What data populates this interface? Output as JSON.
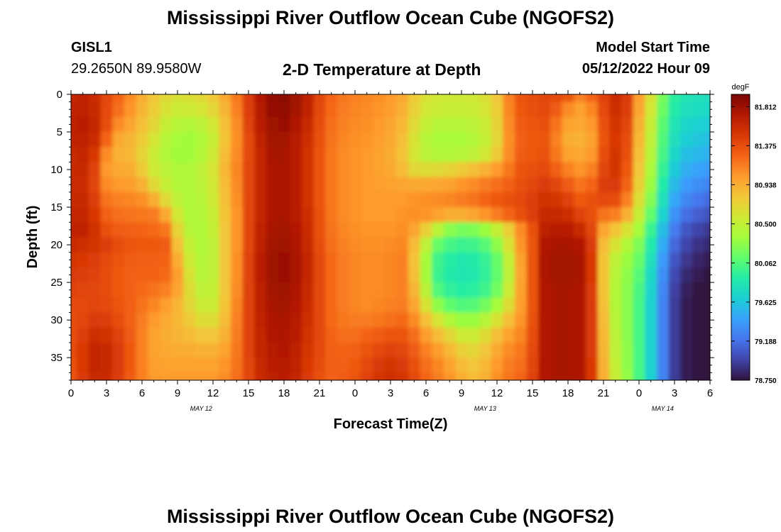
{
  "header": {
    "title": "Mississippi River Outflow Ocean Cube (NGOFS2)",
    "station_id": "GISL1",
    "station_coords": "29.2650N  89.9580W",
    "plot_title": "2-D Temperature at Depth",
    "model_start_label": "Model Start Time",
    "model_start_value": "05/12/2022 Hour 09",
    "footer_title": "Mississippi River Outflow Ocean Cube (NGOFS2)"
  },
  "chart_data": {
    "type": "heatmap",
    "title": "2-D Temperature at Depth",
    "xlabel": "Forecast Time(Z)",
    "ylabel": "Depth (ft)",
    "x_tick_labels": [
      "0",
      "3",
      "6",
      "9",
      "12",
      "15",
      "18",
      "21",
      "0",
      "3",
      "6",
      "9",
      "12",
      "15",
      "18",
      "21",
      "0",
      "3",
      "6"
    ],
    "x_day_labels": [
      {
        "label": "MAY 12",
        "at_hour": 11
      },
      {
        "label": "MAY 13",
        "at_hour": 35
      },
      {
        "label": "MAY 14",
        "at_hour": 50
      }
    ],
    "xlim_hours": [
      0,
      54
    ],
    "y_ticks": [
      0,
      5,
      10,
      15,
      20,
      25,
      30,
      35
    ],
    "ylim": [
      0,
      38
    ],
    "y_inverted": true,
    "colorbar": {
      "unit": "degF",
      "min": 78.75,
      "max": 81.95,
      "tick_labels": [
        "81.812",
        "81.375",
        "80.938",
        "80.500",
        "80.062",
        "79.625",
        "79.188",
        "78.750"
      ],
      "tick_values": [
        81.812,
        81.375,
        80.938,
        80.5,
        80.062,
        79.625,
        79.188,
        78.75
      ]
    },
    "colormap": [
      "#30123b",
      "#4145ab",
      "#4675ed",
      "#39a2fc",
      "#1bcfd4",
      "#24eca6",
      "#61fc6c",
      "#a4fc3b",
      "#d1e834",
      "#f3c63a",
      "#fe9b2d",
      "#f36315",
      "#d93806",
      "#b11901",
      "#7a0403"
    ],
    "depths_ft": [
      0,
      2,
      4,
      6,
      8,
      10,
      12,
      14,
      16,
      18,
      20,
      22,
      24,
      26,
      28,
      30,
      32,
      34,
      36,
      38
    ],
    "times_hours": [
      0,
      1,
      2,
      3,
      4,
      5,
      6,
      7,
      8,
      9,
      10,
      11,
      12,
      13,
      14,
      15,
      16,
      17,
      18,
      19,
      20,
      21,
      22,
      23,
      24,
      25,
      26,
      27,
      28,
      29,
      30,
      31,
      32,
      33,
      34,
      35,
      36,
      37,
      38,
      39,
      40,
      41,
      42,
      43,
      44,
      45,
      46,
      47,
      48,
      49,
      50,
      51,
      52,
      53,
      54
    ],
    "temperature_degF": [
      [
        81.62,
        81.64,
        81.58,
        81.42,
        81.26,
        81.1,
        80.94,
        80.8,
        80.68,
        80.62,
        80.64,
        80.68,
        80.78,
        80.96,
        81.18,
        81.48,
        81.72,
        81.86,
        81.88,
        81.8,
        81.66,
        81.42,
        81.26,
        81.18,
        81.14,
        81.12,
        81.08,
        81.04,
        80.96,
        80.78,
        80.62,
        80.58,
        80.56,
        80.56,
        80.58,
        80.64,
        80.8,
        81.14,
        81.34,
        81.38,
        81.42,
        81.4,
        81.34,
        81.14,
        81.26,
        81.44,
        81.58,
        81.48,
        81.02,
        80.62,
        80.2,
        79.92,
        79.82,
        79.8,
        79.78
      ],
      [
        81.64,
        81.66,
        81.6,
        81.4,
        81.22,
        81.06,
        80.9,
        80.76,
        80.62,
        80.54,
        80.56,
        80.6,
        80.7,
        80.9,
        81.14,
        81.46,
        81.7,
        81.84,
        81.86,
        81.78,
        81.64,
        81.4,
        81.24,
        81.16,
        81.12,
        81.1,
        81.06,
        81.02,
        80.92,
        80.74,
        80.58,
        80.54,
        80.52,
        80.52,
        80.54,
        80.6,
        80.76,
        81.12,
        81.32,
        81.36,
        81.4,
        81.3,
        81.1,
        81.0,
        81.12,
        81.4,
        81.56,
        81.46,
        80.98,
        80.58,
        80.16,
        79.88,
        79.78,
        79.76,
        79.74
      ],
      [
        81.66,
        81.68,
        81.62,
        81.38,
        81.1,
        80.98,
        80.84,
        80.7,
        80.52,
        80.44,
        80.42,
        80.46,
        80.58,
        80.84,
        81.1,
        81.44,
        81.68,
        81.8,
        81.82,
        81.74,
        81.6,
        81.38,
        81.22,
        81.14,
        81.1,
        81.08,
        81.04,
        80.98,
        80.88,
        80.68,
        80.5,
        80.44,
        80.44,
        80.44,
        80.46,
        80.54,
        80.72,
        81.1,
        81.3,
        81.34,
        81.36,
        81.2,
        81.0,
        80.96,
        81.04,
        81.36,
        81.52,
        81.42,
        80.92,
        80.52,
        80.1,
        79.82,
        79.72,
        79.68,
        79.66
      ],
      [
        81.64,
        81.66,
        81.58,
        81.26,
        80.96,
        80.9,
        80.78,
        80.6,
        80.44,
        80.36,
        80.34,
        80.4,
        80.52,
        80.82,
        81.08,
        81.4,
        81.64,
        81.78,
        81.78,
        81.7,
        81.56,
        81.36,
        81.2,
        81.12,
        81.08,
        81.06,
        81.02,
        80.96,
        80.84,
        80.62,
        80.44,
        80.38,
        80.38,
        80.38,
        80.42,
        80.5,
        80.7,
        81.08,
        81.28,
        81.32,
        81.34,
        81.14,
        80.94,
        80.92,
        81.0,
        81.34,
        81.5,
        81.38,
        80.88,
        80.48,
        80.06,
        79.78,
        79.66,
        79.62,
        79.58
      ],
      [
        81.6,
        81.62,
        81.5,
        81.1,
        80.92,
        80.88,
        80.72,
        80.54,
        80.42,
        80.34,
        80.34,
        80.42,
        80.56,
        80.86,
        81.1,
        81.4,
        81.62,
        81.76,
        81.76,
        81.68,
        81.54,
        81.34,
        81.18,
        81.1,
        81.06,
        81.04,
        81.0,
        80.94,
        80.82,
        80.6,
        80.46,
        80.42,
        80.42,
        80.44,
        80.48,
        80.58,
        80.78,
        81.1,
        81.3,
        81.32,
        81.36,
        81.18,
        81.0,
        80.96,
        81.04,
        81.38,
        81.52,
        81.36,
        80.84,
        80.44,
        80.02,
        79.72,
        79.58,
        79.54,
        79.5
      ],
      [
        81.58,
        81.6,
        81.44,
        81.04,
        80.96,
        80.94,
        80.78,
        80.56,
        80.46,
        80.4,
        80.4,
        80.48,
        80.6,
        80.9,
        81.12,
        81.42,
        81.62,
        81.74,
        81.76,
        81.68,
        81.54,
        81.34,
        81.18,
        81.1,
        81.06,
        81.04,
        81.0,
        80.96,
        80.86,
        80.7,
        80.66,
        80.68,
        80.72,
        80.78,
        80.84,
        80.92,
        81.04,
        81.18,
        81.34,
        81.36,
        81.4,
        81.28,
        81.14,
        81.06,
        81.14,
        81.42,
        81.52,
        81.32,
        80.8,
        80.38,
        79.96,
        79.64,
        79.5,
        79.44,
        79.4
      ],
      [
        81.58,
        81.58,
        81.42,
        81.1,
        81.04,
        81.02,
        80.92,
        80.68,
        80.52,
        80.42,
        80.4,
        80.46,
        80.58,
        80.86,
        81.1,
        81.42,
        81.62,
        81.74,
        81.76,
        81.68,
        81.54,
        81.34,
        81.18,
        81.1,
        81.06,
        81.04,
        81.02,
        81.0,
        80.98,
        80.96,
        80.96,
        80.98,
        81.0,
        81.06,
        81.1,
        81.16,
        81.22,
        81.28,
        81.36,
        81.42,
        81.48,
        81.42,
        81.3,
        81.2,
        81.26,
        81.46,
        81.48,
        81.26,
        80.74,
        80.32,
        79.88,
        79.56,
        79.4,
        79.34,
        79.28
      ],
      [
        81.6,
        81.6,
        81.46,
        81.2,
        81.14,
        81.12,
        81.08,
        80.94,
        80.68,
        80.48,
        80.4,
        80.44,
        80.56,
        80.84,
        81.08,
        81.42,
        81.62,
        81.74,
        81.76,
        81.68,
        81.54,
        81.34,
        81.18,
        81.1,
        81.06,
        81.04,
        81.04,
        81.04,
        81.04,
        81.06,
        81.08,
        81.1,
        81.12,
        81.16,
        81.2,
        81.26,
        81.32,
        81.36,
        81.4,
        81.46,
        81.54,
        81.52,
        81.44,
        81.32,
        81.36,
        81.4,
        81.38,
        81.14,
        80.64,
        80.24,
        79.8,
        79.46,
        79.3,
        79.22,
        79.16
      ],
      [
        81.62,
        81.62,
        81.5,
        81.28,
        81.22,
        81.2,
        81.18,
        81.16,
        80.96,
        80.58,
        80.4,
        80.42,
        80.52,
        80.82,
        81.06,
        81.42,
        81.62,
        81.74,
        81.76,
        81.7,
        81.56,
        81.36,
        81.18,
        81.1,
        81.06,
        81.04,
        81.04,
        81.04,
        81.06,
        81.08,
        81.06,
        81.0,
        80.94,
        80.94,
        80.98,
        81.06,
        81.16,
        81.26,
        81.36,
        81.46,
        81.6,
        81.6,
        81.56,
        81.44,
        81.36,
        81.2,
        81.14,
        80.92,
        80.52,
        80.12,
        79.7,
        79.36,
        79.18,
        79.1,
        79.04
      ],
      [
        81.64,
        81.64,
        81.54,
        81.36,
        81.3,
        81.28,
        81.26,
        81.24,
        81.18,
        80.72,
        80.44,
        80.4,
        80.5,
        80.8,
        81.06,
        81.42,
        81.64,
        81.76,
        81.78,
        81.72,
        81.58,
        81.36,
        81.2,
        81.12,
        81.08,
        81.06,
        81.06,
        81.06,
        81.08,
        80.98,
        80.74,
        80.46,
        80.26,
        80.2,
        80.22,
        80.32,
        80.5,
        80.76,
        81.1,
        81.36,
        81.66,
        81.7,
        81.68,
        81.6,
        81.42,
        80.98,
        80.82,
        80.62,
        80.36,
        79.98,
        79.58,
        79.24,
        79.06,
        78.98,
        78.92
      ],
      [
        81.58,
        81.56,
        81.52,
        81.46,
        81.38,
        81.34,
        81.32,
        81.32,
        81.3,
        80.84,
        80.5,
        80.4,
        80.48,
        80.8,
        81.06,
        81.42,
        81.66,
        81.78,
        81.8,
        81.74,
        81.6,
        81.38,
        81.22,
        81.14,
        81.1,
        81.08,
        81.08,
        81.1,
        81.12,
        80.86,
        80.48,
        80.14,
        80.02,
        79.98,
        80.0,
        80.08,
        80.28,
        80.62,
        81.06,
        81.34,
        81.72,
        81.76,
        81.76,
        81.72,
        81.48,
        80.86,
        80.62,
        80.42,
        80.22,
        79.88,
        79.48,
        79.14,
        78.98,
        78.9,
        78.86
      ],
      [
        81.52,
        81.5,
        81.46,
        81.4,
        81.34,
        81.3,
        81.28,
        81.28,
        81.26,
        80.94,
        80.56,
        80.42,
        80.48,
        80.8,
        81.08,
        81.44,
        81.68,
        81.8,
        81.82,
        81.76,
        81.62,
        81.4,
        81.24,
        81.16,
        81.12,
        81.1,
        81.1,
        81.12,
        81.14,
        80.82,
        80.36,
        80.0,
        79.9,
        79.86,
        79.88,
        79.96,
        80.14,
        80.5,
        81.0,
        81.34,
        81.74,
        81.78,
        81.78,
        81.76,
        81.5,
        80.82,
        80.48,
        80.32,
        80.14,
        79.8,
        79.4,
        79.06,
        78.92,
        78.84,
        78.8
      ],
      [
        81.48,
        81.46,
        81.44,
        81.38,
        81.32,
        81.28,
        81.26,
        81.26,
        81.24,
        81.02,
        80.62,
        80.44,
        80.48,
        80.8,
        81.08,
        81.44,
        81.68,
        81.8,
        81.82,
        81.76,
        81.62,
        81.4,
        81.24,
        81.16,
        81.12,
        81.1,
        81.1,
        81.12,
        81.14,
        80.84,
        80.36,
        79.98,
        79.88,
        79.84,
        79.86,
        79.94,
        80.12,
        80.48,
        80.98,
        81.34,
        81.74,
        81.78,
        81.78,
        81.76,
        81.5,
        80.82,
        80.44,
        80.28,
        80.08,
        79.74,
        79.34,
        79.0,
        78.86,
        78.8,
        78.76
      ],
      [
        81.44,
        81.42,
        81.42,
        81.38,
        81.32,
        81.28,
        81.24,
        81.2,
        81.14,
        80.98,
        80.66,
        80.48,
        80.5,
        80.8,
        81.1,
        81.44,
        81.66,
        81.78,
        81.8,
        81.74,
        81.6,
        81.4,
        81.24,
        81.16,
        81.12,
        81.1,
        81.1,
        81.12,
        81.14,
        80.9,
        80.46,
        80.06,
        79.94,
        79.9,
        79.92,
        80.0,
        80.18,
        80.54,
        81.0,
        81.34,
        81.72,
        81.76,
        81.76,
        81.74,
        81.48,
        80.82,
        80.42,
        80.26,
        80.04,
        79.7,
        79.3,
        78.96,
        78.82,
        78.76,
        78.74
      ],
      [
        81.4,
        81.4,
        81.42,
        81.4,
        81.34,
        81.28,
        81.2,
        81.12,
        81.02,
        80.9,
        80.7,
        80.54,
        80.54,
        80.82,
        81.12,
        81.44,
        81.66,
        81.76,
        81.78,
        81.72,
        81.58,
        81.4,
        81.24,
        81.16,
        81.12,
        81.1,
        81.12,
        81.14,
        81.16,
        80.98,
        80.62,
        80.28,
        80.12,
        80.06,
        80.08,
        80.18,
        80.36,
        80.66,
        81.02,
        81.34,
        81.72,
        81.76,
        81.76,
        81.74,
        81.48,
        80.84,
        80.42,
        80.26,
        80.02,
        79.68,
        79.28,
        78.94,
        78.8,
        78.76,
        78.74
      ],
      [
        81.38,
        81.42,
        81.48,
        81.46,
        81.38,
        81.28,
        81.16,
        81.04,
        80.96,
        80.88,
        80.78,
        80.66,
        80.66,
        80.86,
        81.14,
        81.44,
        81.64,
        81.74,
        81.76,
        81.7,
        81.56,
        81.4,
        81.24,
        81.18,
        81.16,
        81.16,
        81.18,
        81.22,
        81.24,
        81.1,
        80.84,
        80.6,
        80.42,
        80.32,
        80.32,
        80.44,
        80.62,
        80.84,
        81.06,
        81.36,
        81.72,
        81.76,
        81.76,
        81.74,
        81.48,
        80.86,
        80.44,
        80.26,
        80.02,
        79.68,
        79.28,
        78.94,
        78.8,
        78.76,
        78.74
      ],
      [
        81.38,
        81.46,
        81.56,
        81.54,
        81.44,
        81.3,
        81.14,
        81.0,
        80.94,
        80.9,
        80.86,
        80.8,
        80.8,
        80.92,
        81.16,
        81.44,
        81.62,
        81.72,
        81.74,
        81.68,
        81.54,
        81.4,
        81.26,
        81.22,
        81.22,
        81.26,
        81.3,
        81.34,
        81.34,
        81.22,
        81.02,
        80.86,
        80.7,
        80.56,
        80.54,
        80.66,
        80.84,
        81.0,
        81.12,
        81.38,
        81.72,
        81.76,
        81.76,
        81.74,
        81.48,
        80.88,
        80.46,
        80.26,
        80.02,
        79.68,
        79.28,
        78.94,
        78.8,
        78.76,
        78.74
      ],
      [
        81.38,
        81.5,
        81.62,
        81.6,
        81.48,
        81.32,
        81.14,
        81.0,
        80.96,
        80.94,
        80.94,
        80.92,
        80.92,
        81.0,
        81.18,
        81.44,
        81.62,
        81.7,
        81.72,
        81.66,
        81.52,
        81.4,
        81.28,
        81.26,
        81.28,
        81.34,
        81.4,
        81.44,
        81.42,
        81.3,
        81.14,
        81.02,
        80.88,
        80.74,
        80.7,
        80.8,
        80.96,
        81.1,
        81.18,
        81.4,
        81.72,
        81.76,
        81.76,
        81.74,
        81.48,
        80.9,
        80.48,
        80.28,
        80.02,
        79.68,
        79.28,
        78.94,
        78.8,
        78.76,
        78.74
      ],
      [
        81.36,
        81.5,
        81.62,
        81.6,
        81.48,
        81.32,
        81.14,
        81.02,
        81.0,
        81.0,
        81.0,
        81.0,
        81.0,
        81.06,
        81.2,
        81.42,
        81.6,
        81.68,
        81.7,
        81.64,
        81.5,
        81.38,
        81.28,
        81.28,
        81.32,
        81.4,
        81.48,
        81.52,
        81.48,
        81.36,
        81.22,
        81.12,
        81.0,
        80.86,
        80.8,
        80.88,
        81.04,
        81.16,
        81.22,
        81.42,
        81.72,
        81.76,
        81.76,
        81.74,
        81.5,
        80.92,
        80.5,
        80.28,
        80.02,
        79.68,
        79.28,
        78.94,
        78.8,
        78.76,
        78.74
      ],
      [
        81.34,
        81.48,
        81.6,
        81.58,
        81.46,
        81.3,
        81.14,
        81.04,
        81.02,
        81.04,
        81.04,
        81.04,
        81.04,
        81.1,
        81.22,
        81.42,
        81.58,
        81.66,
        81.68,
        81.62,
        81.48,
        81.36,
        81.28,
        81.3,
        81.34,
        81.44,
        81.52,
        81.56,
        81.52,
        81.4,
        81.26,
        81.16,
        81.06,
        80.94,
        80.86,
        80.92,
        81.08,
        81.2,
        81.26,
        81.44,
        81.72,
        81.76,
        81.76,
        81.74,
        81.5,
        80.94,
        80.52,
        80.3,
        80.02,
        79.68,
        79.28,
        78.94,
        78.8,
        78.76,
        78.74
      ]
    ]
  }
}
